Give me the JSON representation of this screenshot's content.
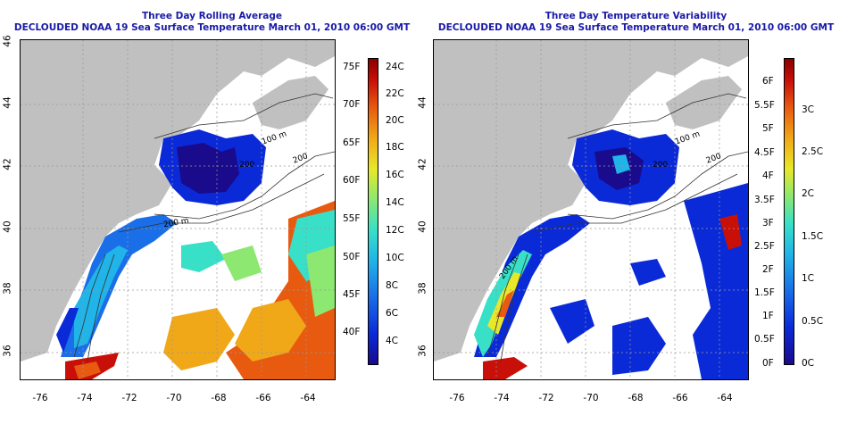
{
  "panels": [
    {
      "title_line1": "Three Day Rolling Average",
      "title_line2": "DECLOUDED NOAA 19 Sea Surface Temperature March 01, 2010 06:00 GMT",
      "x_ticks": [
        "-76",
        "-74",
        "-72",
        "-70",
        "-68",
        "-66",
        "-64"
      ],
      "y_ticks": [
        "36",
        "38",
        "40",
        "42",
        "44",
        "46"
      ],
      "contour_labels": [
        "100 m",
        "200",
        "200 m",
        "200"
      ],
      "colorbar": {
        "left_labels": [
          "75F",
          "70F",
          "65F",
          "60F",
          "55F",
          "50F",
          "45F",
          "40F"
        ],
        "right_labels": [
          "24C",
          "22C",
          "20C",
          "18C",
          "16C",
          "14C",
          "12C",
          "10C",
          "8C",
          "6C",
          "4C"
        ]
      }
    },
    {
      "title_line1": "Three Day Temperature Variability",
      "title_line2": "DECLOUDED NOAA 19 Sea Surface Temperature March 01, 2010 06:00 GMT",
      "x_ticks": [
        "-76",
        "-74",
        "-72",
        "-70",
        "-68",
        "-66",
        "-64"
      ],
      "y_ticks": [
        "36",
        "38",
        "40",
        "42",
        "44"
      ],
      "contour_labels": [
        "100 m",
        "200",
        "200 m",
        "200"
      ],
      "colorbar": {
        "left_labels": [
          "6F",
          "5.5F",
          "5F",
          "4.5F",
          "4F",
          "3.5F",
          "3F",
          "2.5F",
          "2F",
          "1.5F",
          "1F",
          "0.5F",
          "0F"
        ],
        "right_labels": [
          "3C",
          "2.5C",
          "2C",
          "1.5C",
          "1C",
          "0.5C",
          "0C"
        ]
      }
    }
  ],
  "colors": {
    "land": "#c0c0c0",
    "title": "#1a1aa8",
    "sst_scale": [
      "#1a0a8c",
      "#0a2ad8",
      "#1a6ee8",
      "#20b4e8",
      "#38e0c8",
      "#8ce870",
      "#e8e828",
      "#f0a818",
      "#e85a10",
      "#c81008",
      "#8a0000"
    ]
  }
}
